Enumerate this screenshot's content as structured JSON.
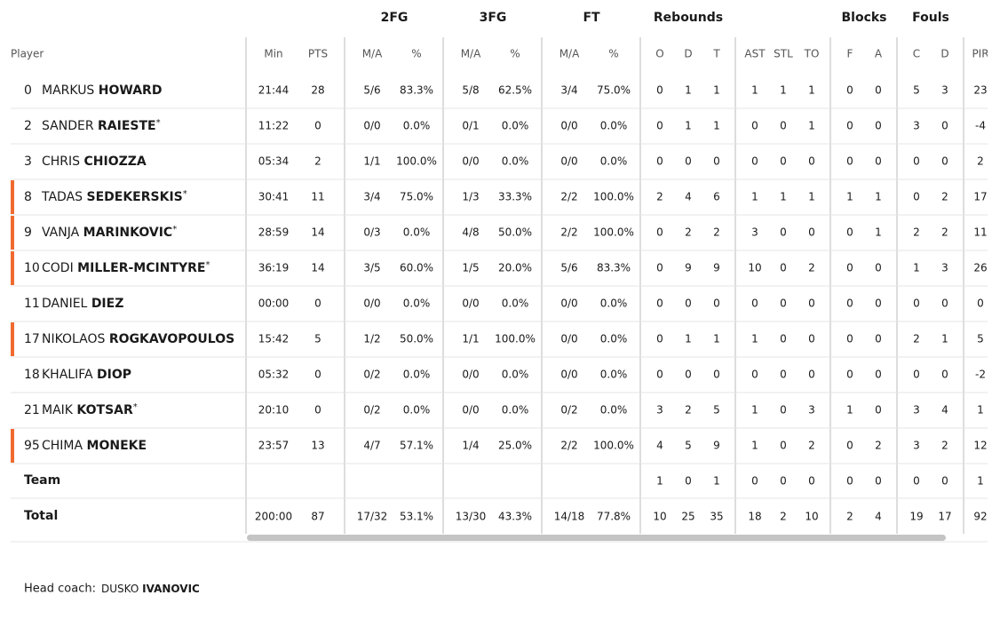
{
  "table": {
    "player_header": "Player",
    "groups": [
      "2FG",
      "3FG",
      "FT",
      "Rebounds",
      "Blocks",
      "Fouls"
    ],
    "columns": [
      "Min",
      "PTS",
      "M/A",
      "%",
      "M/A",
      "%",
      "M/A",
      "%",
      "O",
      "D",
      "T",
      "AST",
      "STL",
      "TO",
      "F",
      "A",
      "C",
      "D",
      "PIR"
    ],
    "rows": [
      {
        "number": "0",
        "first": "MARKUS",
        "last": "HOWARD",
        "stats": [
          "21:44",
          "28",
          "5/6",
          "83.3%",
          "5/8",
          "62.5%",
          "3/4",
          "75.0%",
          "0",
          "1",
          "1",
          "1",
          "1",
          "1",
          "0",
          "0",
          "5",
          "3",
          "23"
        ]
      },
      {
        "number": "2",
        "first": "SANDER",
        "last": "RAIESTE",
        "starter": "*",
        "stats": [
          "11:22",
          "0",
          "0/0",
          "0.0%",
          "0/1",
          "0.0%",
          "0/0",
          "0.0%",
          "0",
          "1",
          "1",
          "0",
          "0",
          "1",
          "0",
          "0",
          "3",
          "0",
          "-4"
        ]
      },
      {
        "number": "3",
        "first": "CHRIS",
        "last": "CHIOZZA",
        "stats": [
          "05:34",
          "2",
          "1/1",
          "100.0%",
          "0/0",
          "0.0%",
          "0/0",
          "0.0%",
          "0",
          "0",
          "0",
          "0",
          "0",
          "0",
          "0",
          "0",
          "0",
          "0",
          "2"
        ]
      },
      {
        "number": "8",
        "first": "TADAS",
        "last": "SEDEKERSKIS",
        "starter": "*",
        "stats": [
          "30:41",
          "11",
          "3/4",
          "75.0%",
          "1/3",
          "33.3%",
          "2/2",
          "100.0%",
          "2",
          "4",
          "6",
          "1",
          "1",
          "1",
          "1",
          "1",
          "0",
          "2",
          "17"
        ]
      },
      {
        "number": "9",
        "first": "VANJA",
        "last": "MARINKOVIC",
        "starter": "*",
        "stats": [
          "28:59",
          "14",
          "0/3",
          "0.0%",
          "4/8",
          "50.0%",
          "2/2",
          "100.0%",
          "0",
          "2",
          "2",
          "3",
          "0",
          "0",
          "0",
          "1",
          "2",
          "2",
          "11"
        ]
      },
      {
        "number": "10",
        "first": "CODI",
        "last": "MILLER-MCINTYRE",
        "starter": "*",
        "stats": [
          "36:19",
          "14",
          "3/5",
          "60.0%",
          "1/5",
          "20.0%",
          "5/6",
          "83.3%",
          "0",
          "9",
          "9",
          "10",
          "0",
          "2",
          "0",
          "0",
          "1",
          "3",
          "26"
        ]
      },
      {
        "number": "11",
        "first": "DANIEL",
        "last": "DIEZ",
        "stats": [
          "00:00",
          "0",
          "0/0",
          "0.0%",
          "0/0",
          "0.0%",
          "0/0",
          "0.0%",
          "0",
          "0",
          "0",
          "0",
          "0",
          "0",
          "0",
          "0",
          "0",
          "0",
          "0"
        ]
      },
      {
        "number": "17",
        "first": "NIKOLAOS",
        "last": "ROGKAVOPOULOS",
        "stats": [
          "15:42",
          "5",
          "1/2",
          "50.0%",
          "1/1",
          "100.0%",
          "0/0",
          "0.0%",
          "0",
          "1",
          "1",
          "1",
          "0",
          "0",
          "0",
          "0",
          "2",
          "1",
          "5"
        ]
      },
      {
        "number": "18",
        "first": "KHALIFA",
        "last": "DIOP",
        "stats": [
          "05:32",
          "0",
          "0/2",
          "0.0%",
          "0/0",
          "0.0%",
          "0/0",
          "0.0%",
          "0",
          "0",
          "0",
          "0",
          "0",
          "0",
          "0",
          "0",
          "0",
          "0",
          "-2"
        ]
      },
      {
        "number": "21",
        "first": "MAIK",
        "last": "KOTSAR",
        "starter": "*",
        "stats": [
          "20:10",
          "0",
          "0/2",
          "0.0%",
          "0/0",
          "0.0%",
          "0/2",
          "0.0%",
          "3",
          "2",
          "5",
          "1",
          "0",
          "3",
          "1",
          "0",
          "3",
          "4",
          "1"
        ]
      },
      {
        "number": "95",
        "first": "CHIMA",
        "last": "MONEKE",
        "stats": [
          "23:57",
          "13",
          "4/7",
          "57.1%",
          "1/4",
          "25.0%",
          "2/2",
          "100.0%",
          "4",
          "5",
          "9",
          "1",
          "0",
          "2",
          "0",
          "2",
          "3",
          "2",
          "12"
        ]
      }
    ],
    "team": {
      "label": "Team",
      "stats": [
        null,
        null,
        null,
        null,
        null,
        null,
        null,
        null,
        "1",
        "0",
        "1",
        "0",
        "0",
        "0",
        "0",
        "0",
        "0",
        "0",
        "1"
      ]
    },
    "total": {
      "label": "Total",
      "stats": [
        "200:00",
        "87",
        "17/32",
        "53.1%",
        "13/30",
        "43.3%",
        "14/18",
        "77.8%",
        "10",
        "25",
        "35",
        "18",
        "2",
        "10",
        "2",
        "4",
        "19",
        "17",
        "92"
      ]
    }
  },
  "coach": {
    "label": "Head coach:",
    "first": "DUSKO",
    "last": "IVANOVIC"
  }
}
